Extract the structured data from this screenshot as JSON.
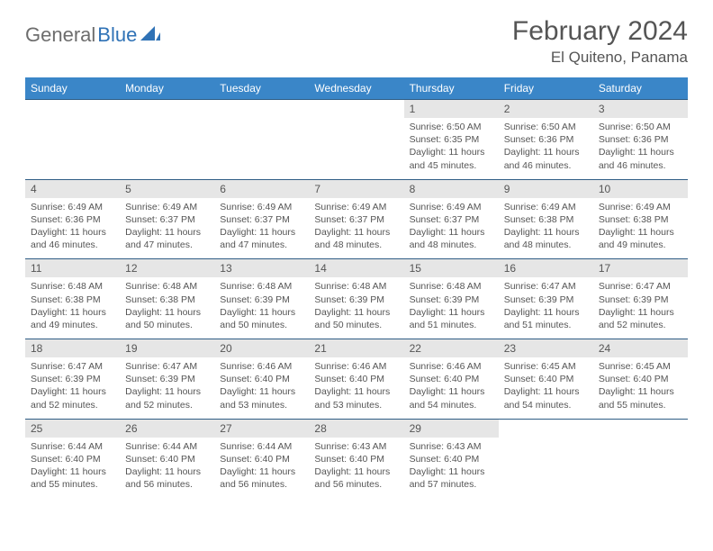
{
  "logo": {
    "t1": "General",
    "t2": "Blue"
  },
  "colors": {
    "header_bg": "#3a86c8",
    "date_bg": "#e6e6e6",
    "rule": "#2f5d85",
    "text": "#555555",
    "logo_gray": "#6d6d6d",
    "logo_blue": "#2f72b6"
  },
  "title": {
    "month": "February 2024",
    "location": "El Quiteno, Panama"
  },
  "dayNames": [
    "Sunday",
    "Monday",
    "Tuesday",
    "Wednesday",
    "Thursday",
    "Friday",
    "Saturday"
  ],
  "weeks": [
    {
      "dates": [
        "",
        "",
        "",
        "",
        "1",
        "2",
        "3"
      ],
      "details": [
        "",
        "",
        "",
        "",
        "Sunrise: 6:50 AM\nSunset: 6:35 PM\nDaylight: 11 hours and 45 minutes.",
        "Sunrise: 6:50 AM\nSunset: 6:36 PM\nDaylight: 11 hours and 46 minutes.",
        "Sunrise: 6:50 AM\nSunset: 6:36 PM\nDaylight: 11 hours and 46 minutes."
      ]
    },
    {
      "dates": [
        "4",
        "5",
        "6",
        "7",
        "8",
        "9",
        "10"
      ],
      "details": [
        "Sunrise: 6:49 AM\nSunset: 6:36 PM\nDaylight: 11 hours and 46 minutes.",
        "Sunrise: 6:49 AM\nSunset: 6:37 PM\nDaylight: 11 hours and 47 minutes.",
        "Sunrise: 6:49 AM\nSunset: 6:37 PM\nDaylight: 11 hours and 47 minutes.",
        "Sunrise: 6:49 AM\nSunset: 6:37 PM\nDaylight: 11 hours and 48 minutes.",
        "Sunrise: 6:49 AM\nSunset: 6:37 PM\nDaylight: 11 hours and 48 minutes.",
        "Sunrise: 6:49 AM\nSunset: 6:38 PM\nDaylight: 11 hours and 48 minutes.",
        "Sunrise: 6:49 AM\nSunset: 6:38 PM\nDaylight: 11 hours and 49 minutes."
      ]
    },
    {
      "dates": [
        "11",
        "12",
        "13",
        "14",
        "15",
        "16",
        "17"
      ],
      "details": [
        "Sunrise: 6:48 AM\nSunset: 6:38 PM\nDaylight: 11 hours and 49 minutes.",
        "Sunrise: 6:48 AM\nSunset: 6:38 PM\nDaylight: 11 hours and 50 minutes.",
        "Sunrise: 6:48 AM\nSunset: 6:39 PM\nDaylight: 11 hours and 50 minutes.",
        "Sunrise: 6:48 AM\nSunset: 6:39 PM\nDaylight: 11 hours and 50 minutes.",
        "Sunrise: 6:48 AM\nSunset: 6:39 PM\nDaylight: 11 hours and 51 minutes.",
        "Sunrise: 6:47 AM\nSunset: 6:39 PM\nDaylight: 11 hours and 51 minutes.",
        "Sunrise: 6:47 AM\nSunset: 6:39 PM\nDaylight: 11 hours and 52 minutes."
      ]
    },
    {
      "dates": [
        "18",
        "19",
        "20",
        "21",
        "22",
        "23",
        "24"
      ],
      "details": [
        "Sunrise: 6:47 AM\nSunset: 6:39 PM\nDaylight: 11 hours and 52 minutes.",
        "Sunrise: 6:47 AM\nSunset: 6:39 PM\nDaylight: 11 hours and 52 minutes.",
        "Sunrise: 6:46 AM\nSunset: 6:40 PM\nDaylight: 11 hours and 53 minutes.",
        "Sunrise: 6:46 AM\nSunset: 6:40 PM\nDaylight: 11 hours and 53 minutes.",
        "Sunrise: 6:46 AM\nSunset: 6:40 PM\nDaylight: 11 hours and 54 minutes.",
        "Sunrise: 6:45 AM\nSunset: 6:40 PM\nDaylight: 11 hours and 54 minutes.",
        "Sunrise: 6:45 AM\nSunset: 6:40 PM\nDaylight: 11 hours and 55 minutes."
      ]
    },
    {
      "dates": [
        "25",
        "26",
        "27",
        "28",
        "29",
        "",
        ""
      ],
      "details": [
        "Sunrise: 6:44 AM\nSunset: 6:40 PM\nDaylight: 11 hours and 55 minutes.",
        "Sunrise: 6:44 AM\nSunset: 6:40 PM\nDaylight: 11 hours and 56 minutes.",
        "Sunrise: 6:44 AM\nSunset: 6:40 PM\nDaylight: 11 hours and 56 minutes.",
        "Sunrise: 6:43 AM\nSunset: 6:40 PM\nDaylight: 11 hours and 56 minutes.",
        "Sunrise: 6:43 AM\nSunset: 6:40 PM\nDaylight: 11 hours and 57 minutes.",
        "",
        ""
      ]
    }
  ]
}
